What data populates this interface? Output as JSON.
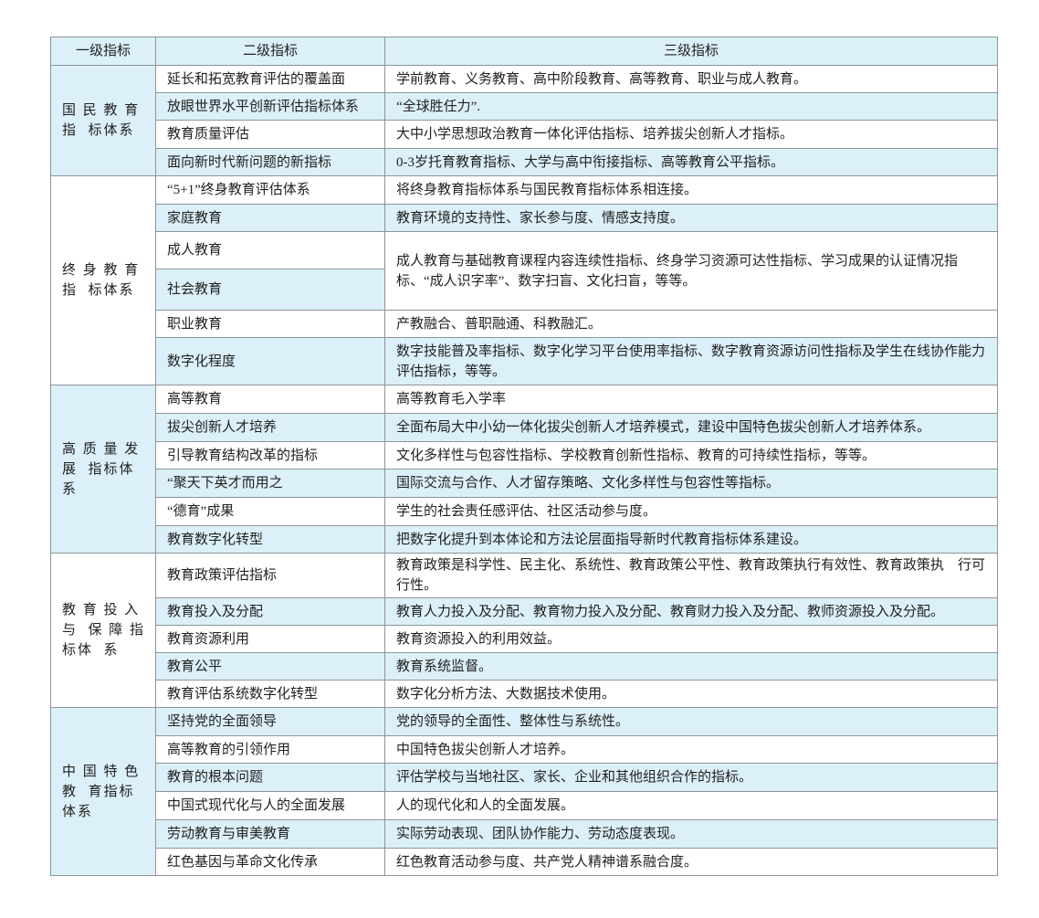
{
  "headers": [
    "一级指标",
    "二级指标",
    "三级指标"
  ],
  "groups": [
    {
      "title_lines": [
        "国 民 教 育",
        "指  标体系"
      ],
      "rows": [
        {
          "l2": "延长和拓宽教育评估的覆盖面",
          "l3": "学前教育、义务教育、高中阶段教育、高等教育、职业与成人教育。"
        },
        {
          "l2": "放眼世界水平创新评估指标体系",
          "l3": "“全球胜任力”."
        },
        {
          "l2": "教育质量评估",
          "l3": "大中小学思想政治教育一体化评估指标、培养拔尖创新人才指标。"
        },
        {
          "l2": "面向新时代新问题的新指标",
          "l3": "0-3岁托育教育指标、大学与高中衔接指标、高等教育公平指标。"
        }
      ]
    },
    {
      "title_lines": [
        "终 身 教 育",
        "指  标体系"
      ],
      "rows": [
        {
          "l2": "“5+1”终身教育评估体系",
          "l3": "将终身教育指标体系与国民教育指标体系相连接。"
        },
        {
          "l2": "家庭教育",
          "l3": "教育环境的支持性、家长参与度、情感支持度。"
        },
        {
          "l2": "成人教育",
          "l3": "成人教育与基础教育课程内容连续性指标、终身学习资源可达性指标、学习成果的认证情况指标、“成人识字率”、数字扫盲、文化扫盲，等等。"
        },
        {
          "l2": "社会教育"
        },
        {
          "l2": "职业教育",
          "l3": "产教融合、普职融通、科教融汇。"
        },
        {
          "l2": "数字化程度",
          "l3": "数字技能普及率指标、数字化学习平台使用率指标、数字教育资源访问性指标及学生在线协作能力评估指标，等等。"
        }
      ]
    },
    {
      "title_lines": [
        "高 质 量 发",
        "展  指标体",
        "系"
      ],
      "rows": [
        {
          "l2": "高等教育",
          "l3": "高等教育毛入学率"
        },
        {
          "l2": "拔尖创新人才培养",
          "l3": "全面布局大中小幼一体化拔尖创新人才培养模式，建设中国特色拔尖创新人才培养体系。"
        },
        {
          "l2": "引导教育结构改革的指标",
          "l3": "文化多样性与包容性指标、学校教育创新性指标、教育的可持续性指标，等等。"
        },
        {
          "l2": "“聚天下英才而用之",
          "l3": "国际交流与合作、人才留存策略、文化多样性与包容性等指标。"
        },
        {
          "l2": "“德育”成果",
          "l3": "学生的社会责任感评估、社区活动参与度。"
        },
        {
          "l2": "教育数字化转型",
          "l3": "把数字化提升到本体论和方法论层面指导新时代教育指标体系建设。"
        }
      ]
    },
    {
      "title_lines": [
        "教 育 投 入",
        "与  保 障 指",
        "标体  系"
      ],
      "rows": [
        {
          "l2": "教育政策评估指标",
          "l3": "教育政策是科学性、民主化、系统性、教育政策公平性、教育政策执行有效性、教育政策执　行可行性。"
        },
        {
          "l2": "教育投入及分配",
          "l3": "教育人力投入及分配、教育物力投入及分配、教育财力投入及分配、教师资源投入及分配。"
        },
        {
          "l2": "教育资源利用",
          "l3": "教育资源投入的利用效益。"
        },
        {
          "l2": "教育公平",
          "l3": "教育系统监督。"
        },
        {
          "l2": "教育评估系统数字化转型",
          "l3": "数字化分析方法、大数据技术使用。"
        }
      ]
    },
    {
      "title_lines": [
        "中 国 特 色",
        "教  育指标",
        "体系"
      ],
      "rows": [
        {
          "l2": "坚持党的全面领导",
          "l3": "党的领导的全面性、整体性与系统性。"
        },
        {
          "l2": "高等教育的引领作用",
          "l3": "中国特色拔尖创新人才培养。"
        },
        {
          "l2": "教育的根本问题",
          "l3": "评估学校与当地社区、家长、企业和其他组织合作的指标。"
        },
        {
          "l2": "中国式现代化与人的全面发展",
          "l3": "人的现代化和人的全面发展。"
        },
        {
          "l2": "劳动教育与审美教育",
          "l3": "实际劳动表现、团队协作能力、劳动态度表现。"
        },
        {
          "l2": "红色基因与革命文化传承",
          "l3": "红色教育活动参与度、共产党人精神谱系融合度。"
        }
      ]
    }
  ],
  "colors": {
    "row_blue": "#dcf0f9",
    "border": "#8e9499"
  }
}
